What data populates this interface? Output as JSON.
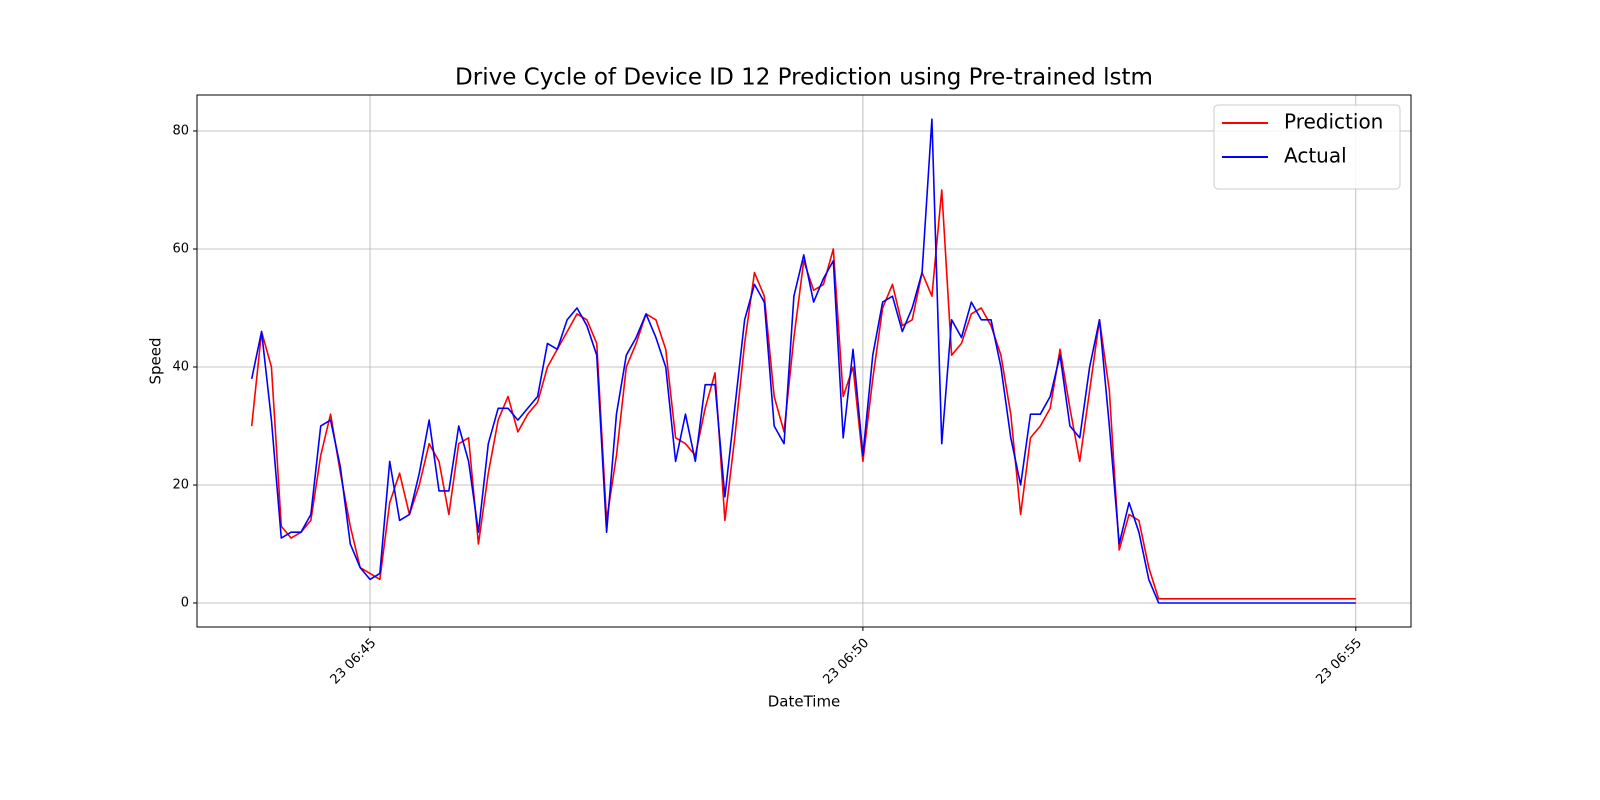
{
  "chart_data": {
    "type": "line",
    "title": "Drive Cycle of Device ID 12 Prediction using Pre-trained lstm",
    "x_label": "DateTime",
    "y_label": "Speed",
    "x": [
      43.8,
      43.9,
      44.0,
      44.1,
      44.2,
      44.3,
      44.4,
      44.5,
      44.6,
      44.7,
      44.8,
      44.9,
      45.0,
      45.1,
      45.2,
      45.3,
      45.4,
      45.5,
      45.6,
      45.7,
      45.8,
      45.9,
      46.0,
      46.1,
      46.2,
      46.3,
      46.4,
      46.5,
      46.6,
      46.7,
      46.8,
      46.9,
      47.0,
      47.1,
      47.2,
      47.3,
      47.4,
      47.5,
      47.6,
      47.7,
      47.8,
      47.9,
      48.0,
      48.1,
      48.2,
      48.3,
      48.4,
      48.5,
      48.6,
      48.7,
      48.8,
      48.9,
      49.0,
      49.1,
      49.2,
      49.3,
      49.4,
      49.5,
      49.6,
      49.7,
      49.8,
      49.9,
      50.0,
      50.1,
      50.2,
      50.3,
      50.4,
      50.5,
      50.6,
      50.7,
      50.8,
      50.9,
      51.0,
      51.1,
      51.2,
      51.3,
      51.4,
      51.5,
      51.6,
      51.7,
      51.8,
      51.9,
      52.0,
      52.1,
      52.2,
      52.3,
      52.4,
      52.5,
      52.6,
      52.7,
      52.8,
      52.9,
      53.0,
      53.1,
      53.2,
      53.3,
      53.4,
      53.5,
      53.6,
      53.7,
      53.8,
      53.9,
      54.0,
      54.1,
      54.2,
      54.3,
      54.4,
      54.5,
      54.6,
      54.7,
      54.8,
      54.9,
      55.0
    ],
    "series": [
      {
        "name": "Prediction",
        "color": "#ff0000",
        "values": [
          30,
          46,
          40,
          13,
          11,
          12,
          14,
          25,
          32,
          22,
          13,
          6,
          5,
          4,
          17,
          22,
          15,
          20,
          27,
          24,
          15,
          27,
          28,
          10,
          22,
          31,
          35,
          29,
          32,
          34,
          40,
          43,
          46,
          49,
          48,
          44,
          14,
          25,
          40,
          44,
          49,
          48,
          43,
          28,
          27,
          25,
          33,
          39,
          14,
          28,
          44,
          56,
          52,
          35,
          29,
          45,
          58,
          53,
          54,
          60,
          35,
          40,
          24,
          38,
          50,
          54,
          47,
          48,
          56,
          52,
          70,
          42,
          44,
          49,
          50,
          47,
          42,
          32,
          15,
          28,
          30,
          33,
          43,
          33,
          24,
          36,
          48,
          36,
          9,
          15,
          14,
          6,
          0.7,
          0.7,
          0.7,
          0.7,
          0.7,
          0.7,
          0.7,
          0.7,
          0.7,
          0.7,
          0.7,
          0.7,
          0.7,
          0.7,
          0.7,
          0.7,
          0.7,
          0.7,
          0.7,
          0.7,
          0.7
        ]
      },
      {
        "name": "Actual",
        "color": "#0000ff",
        "values": [
          38,
          46,
          31,
          11,
          12,
          12,
          15,
          30,
          31,
          23,
          10,
          6,
          4,
          5,
          24,
          14,
          15,
          22,
          31,
          19,
          19,
          30,
          24,
          12,
          27,
          33,
          33,
          31,
          33,
          35,
          44,
          43,
          48,
          50,
          47,
          42,
          12,
          32,
          42,
          45,
          49,
          45,
          40,
          24,
          32,
          24,
          37,
          37,
          18,
          33,
          48,
          54,
          51,
          30,
          27,
          52,
          59,
          51,
          55,
          58,
          28,
          43,
          25,
          42,
          51,
          52,
          46,
          50,
          56,
          82,
          27,
          48,
          45,
          51,
          48,
          48,
          40,
          28,
          20,
          32,
          32,
          35,
          42,
          30,
          28,
          40,
          48,
          30,
          10,
          17,
          12,
          4,
          0,
          0,
          0,
          0,
          0,
          0,
          0,
          0,
          0,
          0,
          0,
          0,
          0,
          0,
          0,
          0,
          0,
          0,
          0,
          0,
          0
        ]
      }
    ],
    "xlim": [
      43.245,
      55.56
    ],
    "ylim": [
      -4.07,
      86.1
    ],
    "xticks": [
      {
        "value": 45,
        "label": "23 06:45"
      },
      {
        "value": 50,
        "label": "23 06:50"
      },
      {
        "value": 55,
        "label": "23 06:55"
      }
    ],
    "yticks": [
      0,
      20,
      40,
      60,
      80
    ],
    "grid": true,
    "legend": "upper right"
  }
}
